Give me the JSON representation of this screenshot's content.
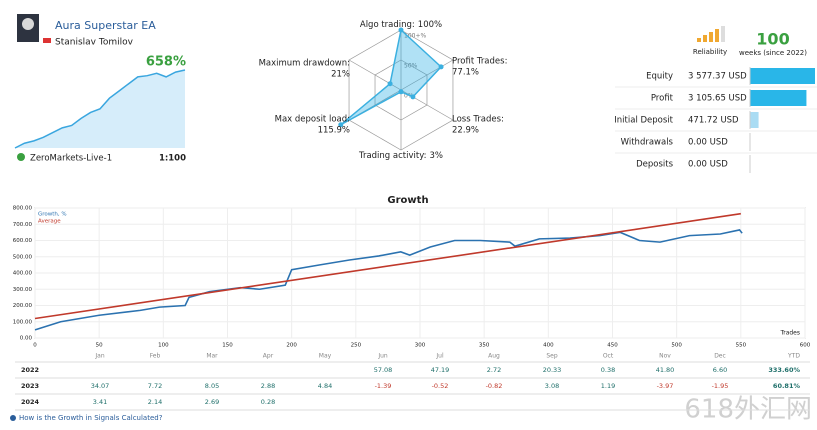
{
  "profile": {
    "name": "Aura Superstar EA",
    "author": "Stanislav Tomilov",
    "gain": "658%",
    "account": "ZeroMarkets-Live-1",
    "leverage": "1:100",
    "mini_chart": {
      "type": "area",
      "values": [
        0,
        40,
        60,
        90,
        130,
        170,
        190,
        250,
        300,
        330,
        420,
        480,
        540,
        600,
        610,
        630,
        600,
        640,
        658
      ]
    }
  },
  "radar": {
    "type": "radar",
    "axes": [
      {
        "label": "Algo trading:",
        "value": 100,
        "value_label": "100%"
      },
      {
        "label": "Profit Trades:",
        "value": 77.1,
        "value_label": "77.1%"
      },
      {
        "label": "Loss Trades:",
        "value": 22.9,
        "value_label": "22.9%"
      },
      {
        "label": "Trading activity:",
        "value": 3,
        "value_label": "3%"
      },
      {
        "label": "Max deposit load:",
        "value": 115.9,
        "value_label": "115.9%"
      },
      {
        "label": "Maximum drawdown:",
        "value": 21,
        "value_label": "21%"
      }
    ],
    "rticks": [
      {
        "value": 100,
        "label": "100+%"
      },
      {
        "value": 50,
        "label": "50%"
      },
      {
        "value": 0,
        "label": "0%"
      }
    ]
  },
  "reliability": {
    "label": "Reliability",
    "level": 4,
    "weeks": 100,
    "weeks_label": "weeks (since 2022)"
  },
  "stats": {
    "type": "bar",
    "categories": [
      "Equity",
      "Profit",
      "Initial Deposit",
      "Withdrawals",
      "Deposits"
    ],
    "values": [
      3577.37,
      3105.65,
      471.72,
      0,
      0
    ],
    "value_labels": [
      "3 577.37 USD",
      "3 105.65 USD",
      "471.72 USD",
      "0.00 USD",
      "0.00 USD"
    ],
    "colors": [
      "#29b6e8",
      "#29b6e8",
      "#aadcf3",
      "#29b6e8",
      "#29b6e8"
    ]
  },
  "chart_data": {
    "type": "line",
    "title": "Growth",
    "x_label": "Trades",
    "xlim": [
      0,
      600
    ],
    "xticks": [
      0,
      50,
      100,
      150,
      200,
      250,
      300,
      350,
      400,
      450,
      500,
      550,
      600
    ],
    "ylim": [
      0,
      800
    ],
    "yticks": [
      {
        "value": 0,
        "label": "0.00"
      },
      {
        "value": 100,
        "label": "100.00"
      },
      {
        "value": 200,
        "label": "200.00"
      },
      {
        "value": 300,
        "label": "300.00"
      },
      {
        "value": 400,
        "label": "400.00"
      },
      {
        "value": 500,
        "label": "500.00"
      },
      {
        "value": 600,
        "label": "600.00"
      },
      {
        "value": 700,
        "label": "700.00"
      },
      {
        "value": 800,
        "label": "800.00"
      }
    ],
    "series": [
      {
        "name": "Growth, %",
        "color": "#2b72b0",
        "x": [
          0,
          20,
          50,
          82,
          97,
          117,
          120,
          136,
          160,
          175,
          195,
          200,
          222,
          245,
          268,
          285,
          292,
          308,
          327,
          347,
          370,
          374,
          393,
          417,
          440,
          456,
          471,
          487,
          510,
          534,
          549,
          551
        ],
        "values": [
          50,
          100,
          140,
          170,
          190,
          200,
          250,
          285,
          310,
          300,
          325,
          420,
          450,
          480,
          505,
          530,
          510,
          560,
          600,
          600,
          590,
          565,
          610,
          615,
          630,
          650,
          600,
          590,
          630,
          640,
          665,
          645
        ]
      },
      {
        "name": "Average",
        "color": "#c0392b",
        "x": [
          0,
          550
        ],
        "values": [
          120,
          765
        ]
      }
    ]
  },
  "table": {
    "header": [
      "Jan",
      "Feb",
      "Mar",
      "Apr",
      "May",
      "Jun",
      "Jul",
      "Aug",
      "Sep",
      "Oct",
      "Nov",
      "Dec",
      "YTD"
    ],
    "rows": [
      [
        "2022",
        null,
        null,
        null,
        null,
        null,
        "57.08",
        "47.19",
        "2.72",
        "20.33",
        "0.38",
        "41.80",
        "6.60",
        "333.60%"
      ],
      [
        "2023",
        "34.07",
        "7.72",
        "8.05",
        "2.88",
        "4.84",
        "-1.39",
        "-0.52",
        "-0.82",
        "3.08",
        "1.19",
        "-3.97",
        "-1.95",
        "60.81%"
      ],
      [
        "2024",
        "3.41",
        "2.14",
        "2.69",
        "0.28",
        null,
        null,
        null,
        null,
        null,
        null,
        null,
        null,
        null
      ]
    ]
  },
  "footer": {
    "link": "How is the Growth in Signals Calculated?",
    "watermark": "618外汇网"
  }
}
